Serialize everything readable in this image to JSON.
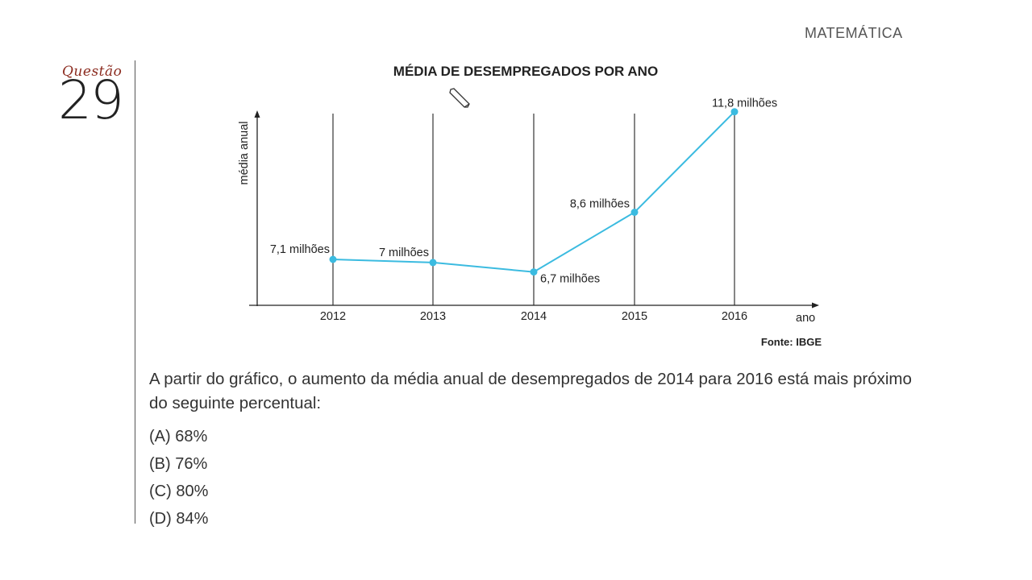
{
  "header": {
    "subject": "MATEMÁTICA"
  },
  "question": {
    "label": "Questão",
    "number": "29",
    "text": "A partir do gráfico, o aumento da média anual de desempregados de 2014 para 2016 está mais próximo do seguinte percentual:",
    "options": [
      "(A) 68%",
      "(B) 76%",
      "(C) 80%",
      "(D) 84%"
    ]
  },
  "chart_data": {
    "type": "line",
    "title": "MÉDIA DE DESEMPREGADOS POR ANO",
    "xlabel": "ano",
    "ylabel": "média anual",
    "categories": [
      "2012",
      "2013",
      "2014",
      "2015",
      "2016"
    ],
    "values": [
      7.1,
      7.0,
      6.7,
      8.6,
      11.8
    ],
    "data_labels": [
      "7,1 milhões",
      "7 milhões",
      "6,7 milhões",
      "8,6 milhões",
      "11,8 milhões"
    ],
    "source": "Fonte: IBGE",
    "line_color": "#3bbbe0",
    "grid": "vertical lines at each year"
  },
  "icons": {
    "cursor": "pencil-cursor-icon"
  }
}
